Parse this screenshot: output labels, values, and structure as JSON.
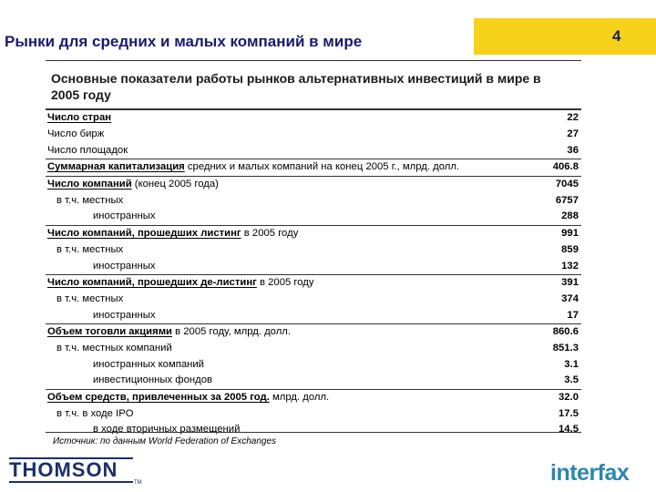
{
  "header": {
    "title": "Рынки для средних и малых компаний в мире",
    "page_number": "4"
  },
  "subtitle": "Основные показатели работы рынков альтернативных инвестиций в мире в 2005 году",
  "rows": [
    {
      "bold": "Число стран",
      "rest": "",
      "value": "22",
      "level": 0,
      "group": true
    },
    {
      "bold": "",
      "rest": "Число бирж",
      "value": "27",
      "level": 0,
      "group": false
    },
    {
      "bold": "",
      "rest": "Число площадок",
      "value": "36",
      "level": 0,
      "group": false
    },
    {
      "bold": "Суммарная капитализация",
      "rest": " средних и малых компаний на конец 2005 г., млрд. долл.",
      "value": "406.8",
      "level": 0,
      "group": true
    },
    {
      "bold": "Число компаний",
      "rest": " (конец 2005 года)",
      "value": "7045",
      "level": 0,
      "group": true
    },
    {
      "bold": "",
      "rest": "в т.ч. местных",
      "value": "6757",
      "level": 1,
      "group": false
    },
    {
      "bold": "",
      "rest": "иностранных",
      "value": "288",
      "level": 2,
      "group": false
    },
    {
      "bold": "Число компаний, прошедших листинг",
      "rest": " в 2005 году",
      "value": "991",
      "level": 0,
      "group": true
    },
    {
      "bold": "",
      "rest": "в т.ч. местных",
      "value": "859",
      "level": 1,
      "group": false
    },
    {
      "bold": "",
      "rest": "иностранных",
      "value": "132",
      "level": 2,
      "group": false
    },
    {
      "bold": "Число компаний, прошедших де-листинг",
      "rest": " в 2005 году",
      "value": "391",
      "level": 0,
      "group": true
    },
    {
      "bold": "",
      "rest": "в т.ч. местных",
      "value": "374",
      "level": 1,
      "group": false
    },
    {
      "bold": "",
      "rest": "иностранных",
      "value": "17",
      "level": 2,
      "group": false
    },
    {
      "bold": "Объем тоговли акциями",
      "rest": " в 2005 году, млрд. долл.",
      "value": "860.6",
      "level": 0,
      "group": true
    },
    {
      "bold": "",
      "rest": "в т.ч. местных компаний",
      "value": "851.3",
      "level": 1,
      "group": false
    },
    {
      "bold": "",
      "rest": "иностранных компаний",
      "value": "3.1",
      "level": 2,
      "group": false
    },
    {
      "bold": "",
      "rest": "инвестиционных фондов",
      "value": "3.5",
      "level": 2,
      "group": false
    },
    {
      "bold": "Объем средств, привлеченных за 2005 год.",
      "rest": " млрд. долл.",
      "value": "32.0",
      "level": 0,
      "group": true
    },
    {
      "bold": "",
      "rest": "в т.ч. в ходе IPO",
      "value": "17.5",
      "level": 1,
      "group": false
    },
    {
      "bold": "",
      "rest": "в ходе вторичных размещений",
      "value": "14.5",
      "level": 2,
      "group": false
    }
  ],
  "source": "Источник: по данным World Federation of Exchanges",
  "logos": {
    "left": "THOMSON",
    "left_tm": "TM",
    "right": "interfax"
  },
  "colors": {
    "header_band": "#f7d21a",
    "title": "#1a1a6e",
    "interfax": "#2c86b0",
    "thomson": "#1c2f6b"
  }
}
